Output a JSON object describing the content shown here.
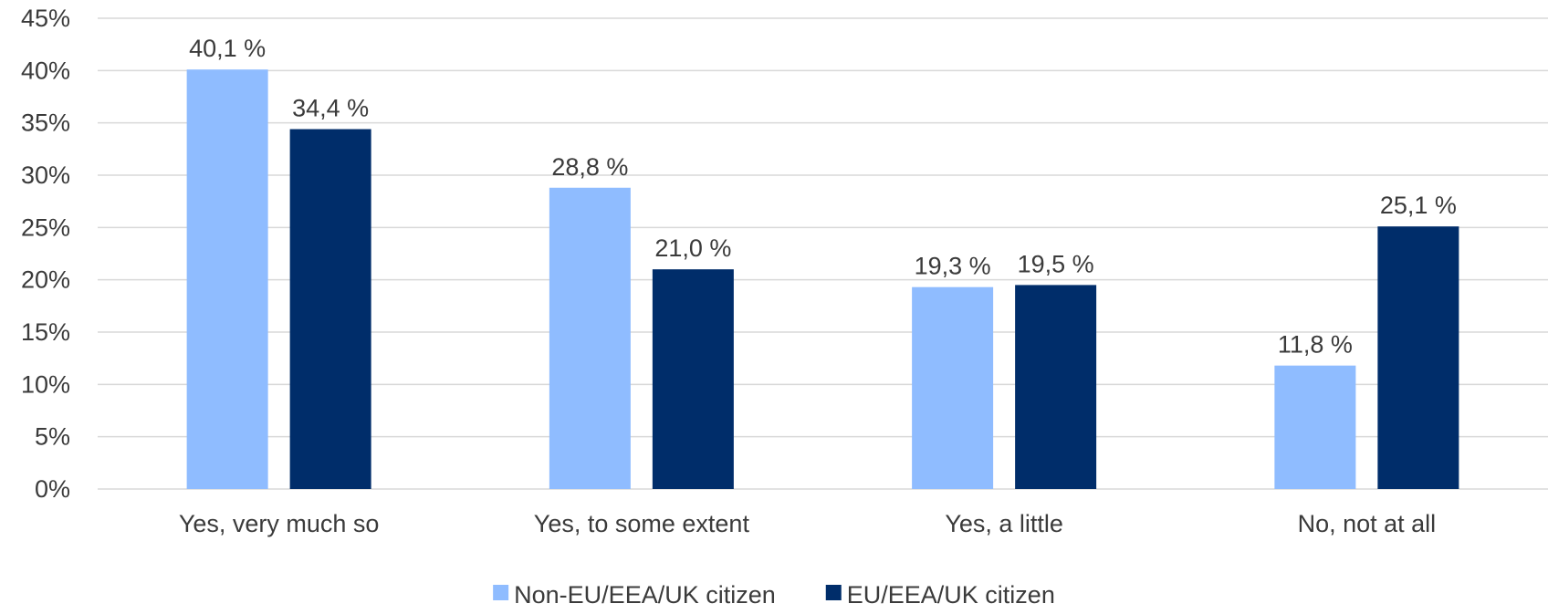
{
  "chart_data": {
    "type": "bar",
    "categories": [
      "Yes, very much so",
      "Yes, to some extent",
      "Yes, a little",
      "No, not at all"
    ],
    "series": [
      {
        "name": "Non-EU/EEA/UK citizen",
        "color": "#8fbcff",
        "values": [
          40.1,
          28.8,
          19.3,
          11.8
        ],
        "labels": [
          "40,1 %",
          "28,8 %",
          "19,3 %",
          "11,8 %"
        ]
      },
      {
        "name": "EU/EEA/UK citizen",
        "color": "#002d6a",
        "values": [
          34.4,
          21.0,
          19.5,
          25.1
        ],
        "labels": [
          "34,4 %",
          "21,0 %",
          "19,5 %",
          "25,1 %"
        ]
      }
    ],
    "yticks": [
      "0%",
      "5%",
      "10%",
      "15%",
      "20%",
      "25%",
      "30%",
      "35%",
      "40%",
      "45%"
    ],
    "ylim": [
      0,
      45
    ],
    "ytick_step": 5,
    "grid": true,
    "legend_position": "bottom"
  }
}
